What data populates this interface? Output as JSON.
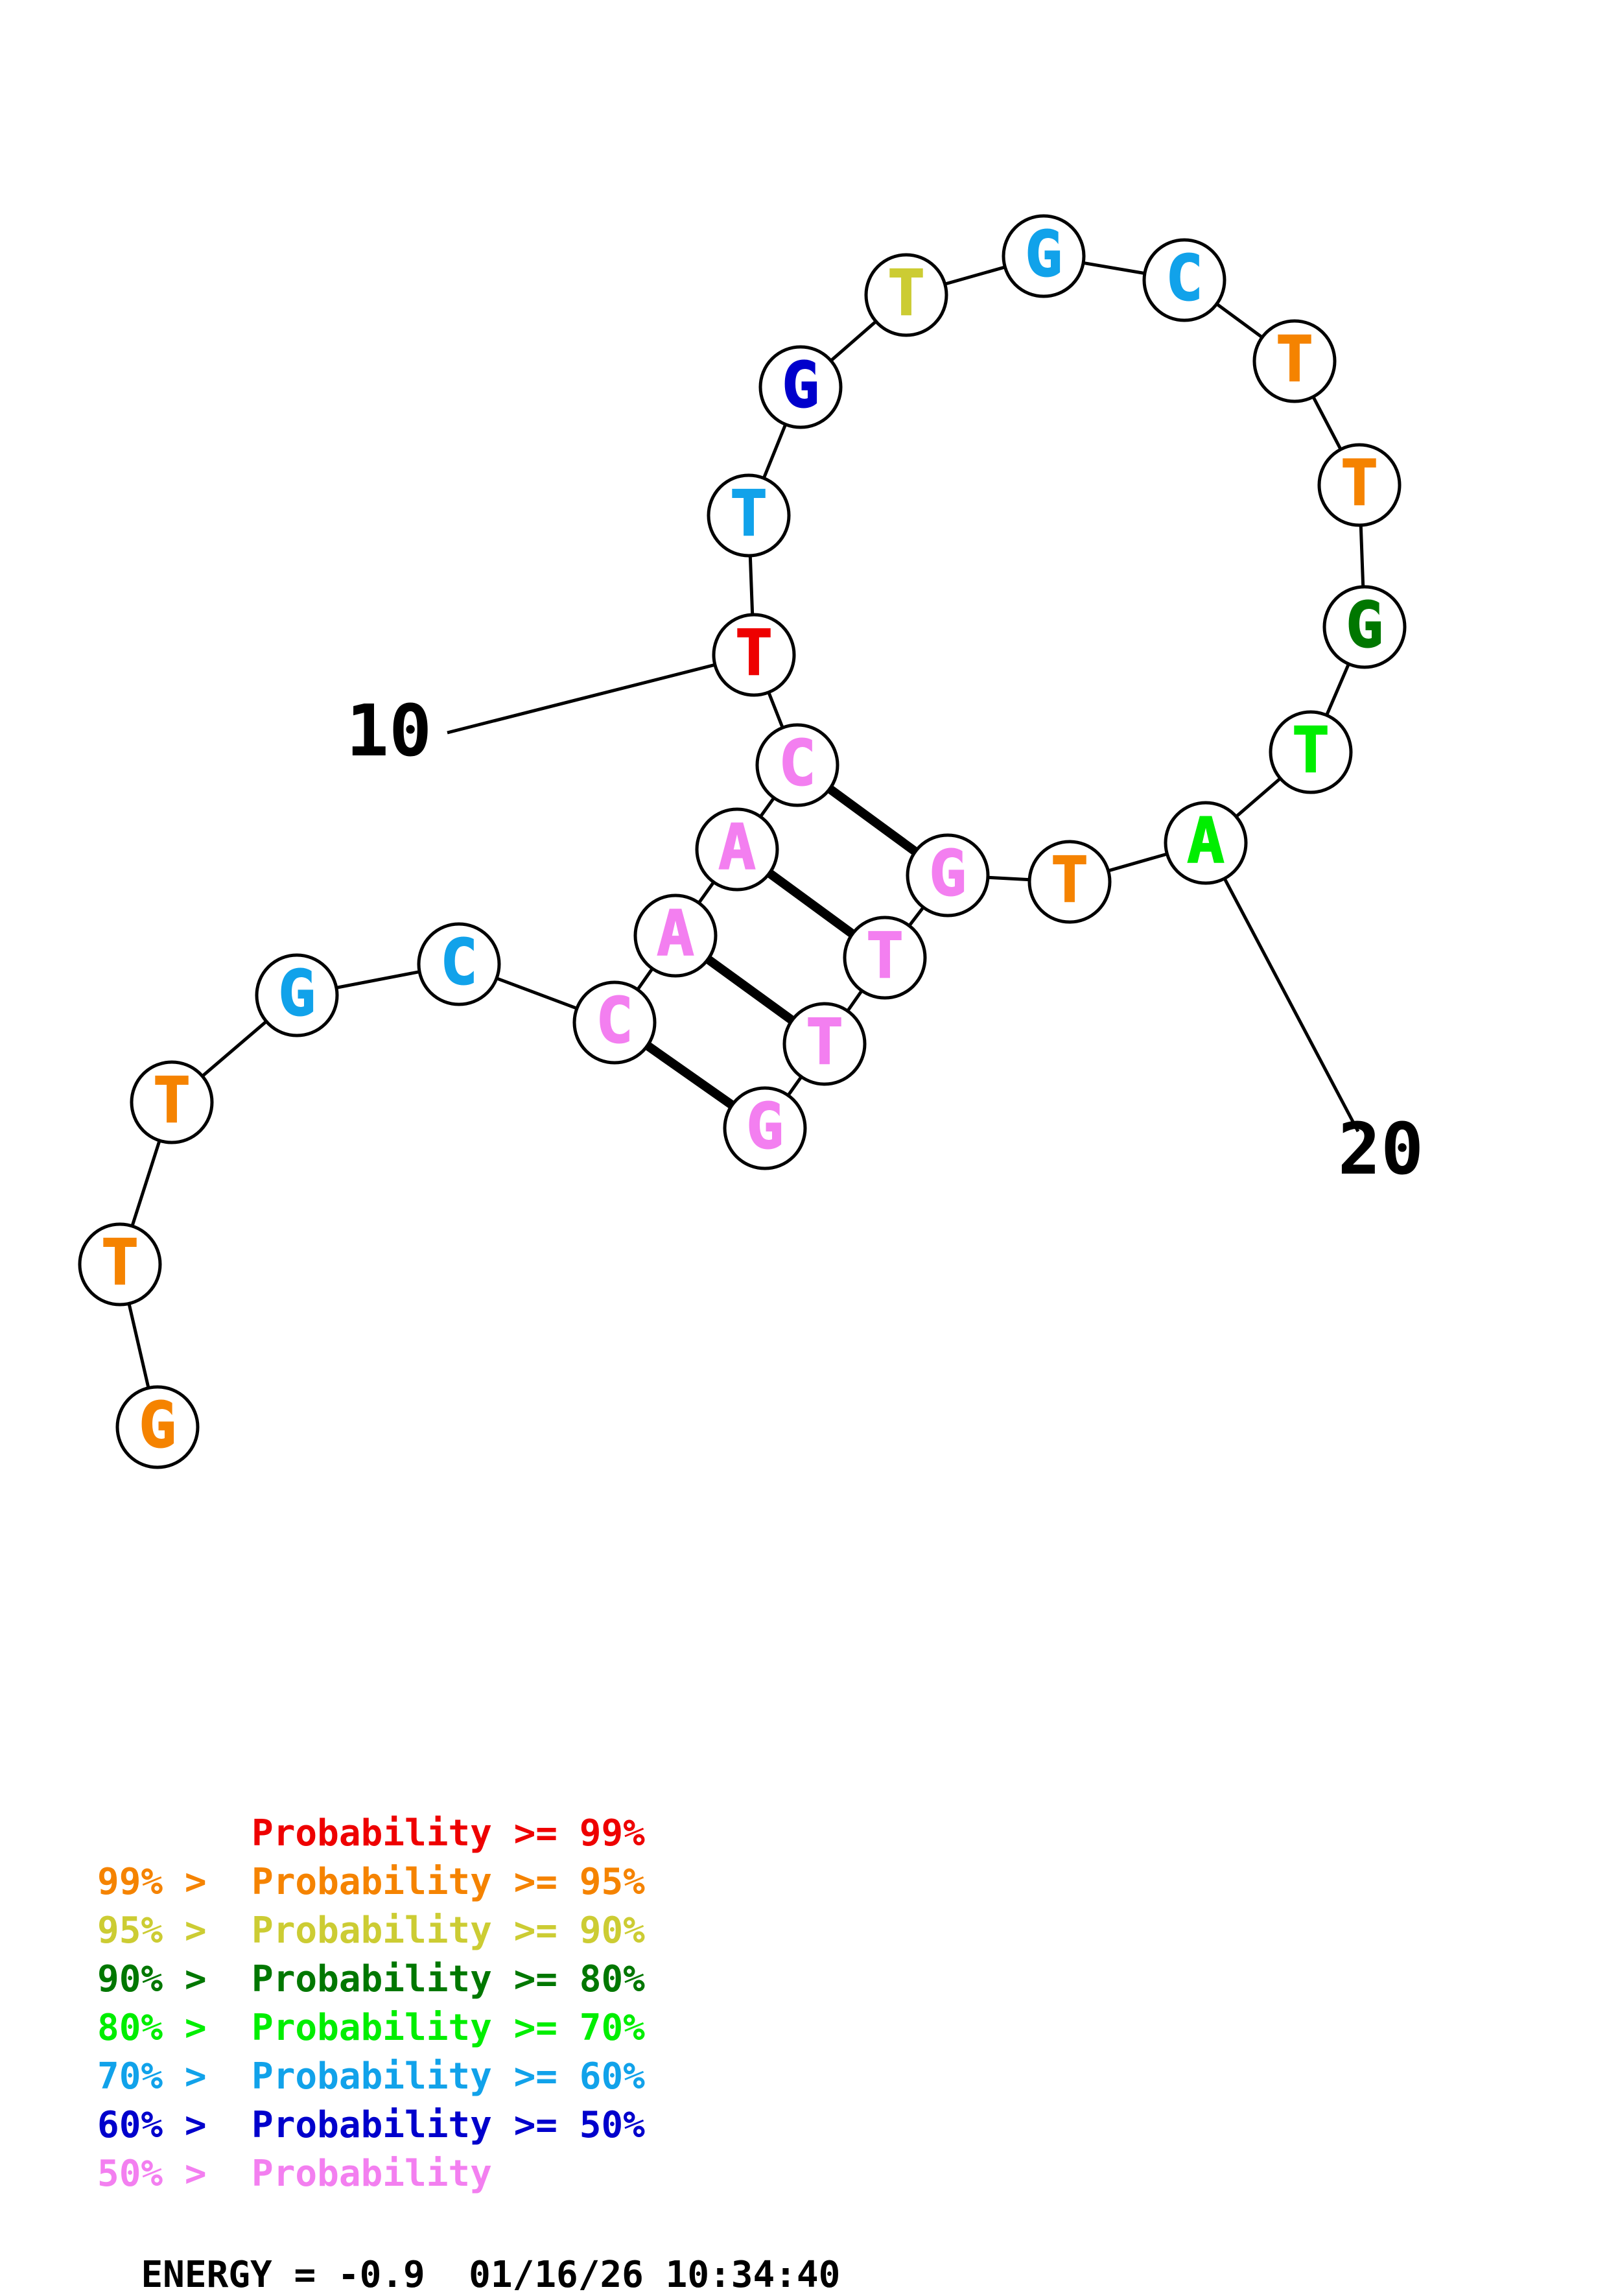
{
  "colors": {
    "p99": "#ee0000",
    "p95": "#f58300",
    "p90": "#cccc33",
    "p80": "#007700",
    "p70": "#00ee00",
    "p60": "#11a2ea",
    "p50": "#0000cc",
    "low": "#f37ff0",
    "ink": "#000000"
  },
  "structure": {
    "bases": [
      {
        "index": 1,
        "letter": "G",
        "prob": "p95"
      },
      {
        "index": 2,
        "letter": "T",
        "prob": "p95"
      },
      {
        "index": 3,
        "letter": "T",
        "prob": "p95"
      },
      {
        "index": 4,
        "letter": "G",
        "prob": "p60"
      },
      {
        "index": 5,
        "letter": "C",
        "prob": "p60"
      },
      {
        "index": 6,
        "letter": "C",
        "prob": "low"
      },
      {
        "index": 7,
        "letter": "A",
        "prob": "low"
      },
      {
        "index": 8,
        "letter": "A",
        "prob": "low"
      },
      {
        "index": 9,
        "letter": "C",
        "prob": "low"
      },
      {
        "index": 10,
        "letter": "T",
        "prob": "p99"
      },
      {
        "index": 11,
        "letter": "T",
        "prob": "p60"
      },
      {
        "index": 12,
        "letter": "G",
        "prob": "p50"
      },
      {
        "index": 13,
        "letter": "T",
        "prob": "p90"
      },
      {
        "index": 14,
        "letter": "G",
        "prob": "p60"
      },
      {
        "index": 15,
        "letter": "C",
        "prob": "p60"
      },
      {
        "index": 16,
        "letter": "T",
        "prob": "p95"
      },
      {
        "index": 17,
        "letter": "T",
        "prob": "p95"
      },
      {
        "index": 18,
        "letter": "G",
        "prob": "p80"
      },
      {
        "index": 19,
        "letter": "T",
        "prob": "p70"
      },
      {
        "index": 20,
        "letter": "A",
        "prob": "p70"
      },
      {
        "index": 21,
        "letter": "T",
        "prob": "p95"
      },
      {
        "index": 22,
        "letter": "G",
        "prob": "low"
      },
      {
        "index": 23,
        "letter": "T",
        "prob": "low"
      },
      {
        "index": 24,
        "letter": "T",
        "prob": "low"
      },
      {
        "index": 25,
        "letter": "G",
        "prob": "low"
      }
    ],
    "pairs": [
      [
        6,
        25
      ],
      [
        7,
        24
      ],
      [
        8,
        23
      ],
      [
        9,
        22
      ]
    ],
    "index_labels": [
      {
        "base": 10,
        "text": "10"
      },
      {
        "base": 20,
        "text": "20"
      }
    ]
  },
  "legend": [
    {
      "prefix": "",
      "label": "Probability >= 99%",
      "color": "p99"
    },
    {
      "prefix": "99% > ",
      "label": "Probability >= 95%",
      "color": "p95"
    },
    {
      "prefix": "95% > ",
      "label": "Probability >= 90%",
      "color": "p90"
    },
    {
      "prefix": "90% > ",
      "label": "Probability >= 80%",
      "color": "p80"
    },
    {
      "prefix": "80% > ",
      "label": "Probability >= 70%",
      "color": "p70"
    },
    {
      "prefix": "70% > ",
      "label": "Probability >= 60%",
      "color": "p60"
    },
    {
      "prefix": "60% > ",
      "label": "Probability >= 50%",
      "color": "p50"
    },
    {
      "prefix": "50% > ",
      "label": "Probability",
      "color": "low"
    }
  ],
  "footer": {
    "energy_text": "ENERGY = -0.9",
    "timestamp": "01/16/26 10:34:40"
  }
}
